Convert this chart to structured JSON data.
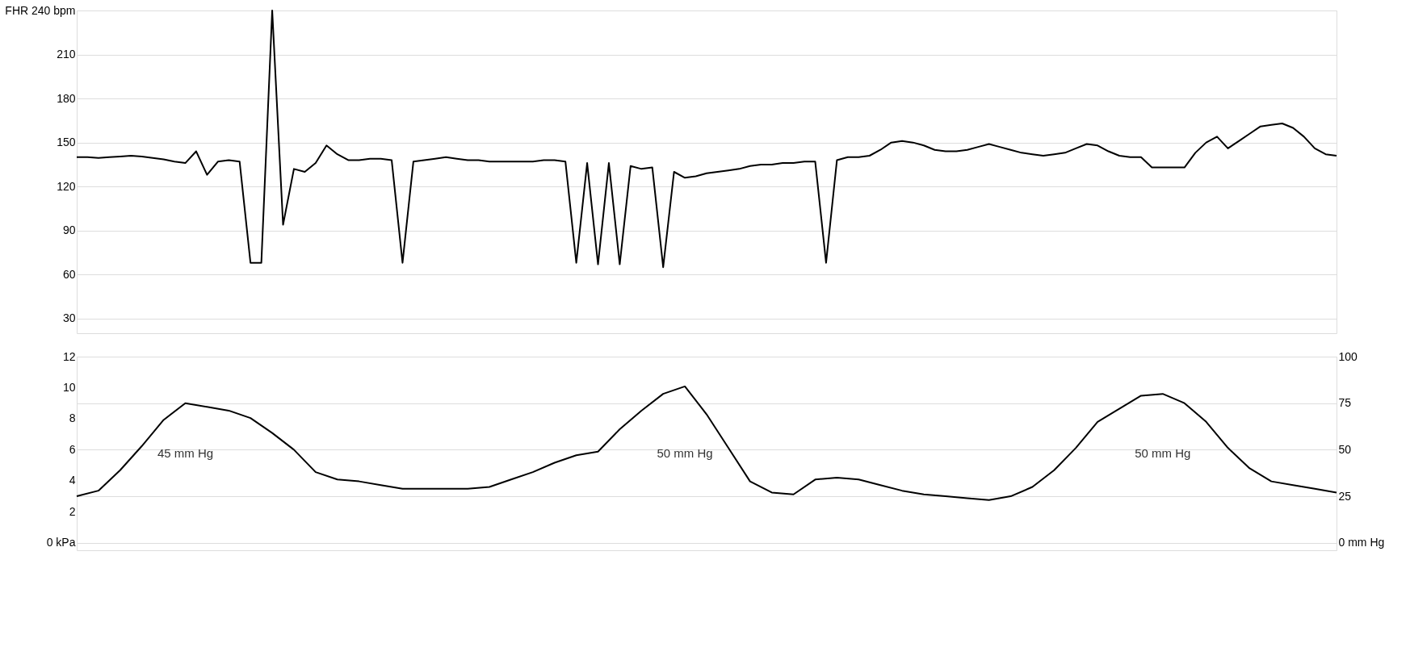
{
  "chart_data": [
    {
      "type": "line",
      "categories": [
        null,
        null,
        null,
        null,
        null,
        null,
        null,
        null,
        null,
        null,
        null,
        null,
        null,
        null,
        null,
        null,
        null,
        null,
        null,
        null,
        null,
        null,
        null,
        null,
        null,
        null,
        null,
        null,
        null,
        null,
        null,
        null,
        null,
        null,
        null,
        null,
        null,
        null,
        null,
        null,
        null,
        null,
        null,
        null,
        null,
        null,
        null,
        null,
        null,
        null,
        null,
        null,
        null,
        null,
        null,
        null,
        null,
        null,
        null,
        null,
        null,
        null,
        null,
        null,
        null,
        null,
        null,
        null,
        null,
        null,
        null,
        null,
        null,
        null,
        null,
        null,
        null,
        null,
        null,
        null,
        null,
        null,
        null,
        null,
        null,
        null,
        null,
        null,
        null,
        null,
        null,
        null,
        null,
        null,
        null,
        null,
        null,
        null,
        null,
        null,
        null,
        null,
        null,
        null,
        null,
        null,
        null,
        null,
        null,
        null,
        null,
        null,
        null,
        null,
        null,
        null,
        null
      ],
      "series": [
        {
          "color": "#000000",
          "values": [
            140,
            140,
            139.5,
            140,
            140.5,
            141,
            140.5,
            139.5,
            138.5,
            137,
            136,
            144,
            128,
            137,
            138,
            137,
            68,
            68,
            240,
            94,
            132,
            130,
            136,
            148,
            142,
            138,
            138,
            139,
            139,
            138,
            68,
            137,
            138,
            139,
            140,
            139,
            138,
            138,
            137,
            137,
            137,
            137,
            137,
            138,
            138,
            137,
            68,
            136,
            67,
            136,
            67,
            134,
            132,
            133,
            65,
            130,
            126,
            127,
            129,
            130,
            131,
            132,
            134,
            135,
            135,
            136,
            136,
            137,
            137,
            68,
            138,
            140,
            140,
            141,
            145,
            150,
            151,
            150,
            148,
            145,
            144,
            144,
            145,
            147,
            149,
            147,
            145,
            143,
            142,
            141,
            142,
            143,
            146,
            149,
            148,
            144,
            141,
            140,
            140,
            133,
            133,
            133,
            133,
            143,
            150,
            154,
            146,
            151,
            156,
            161,
            162,
            163,
            160,
            154,
            146,
            142,
            141
          ]
        }
      ],
      "ylim": [
        20,
        240
      ],
      "yticks": [
        30,
        60,
        90,
        120,
        150,
        180,
        210,
        {
          "value": 240,
          "label": "FHR 240 bpm"
        }
      ],
      "grid": "y",
      "tick_labels": "y"
    },
    {
      "type": "line",
      "categories": [
        null,
        null,
        null,
        null,
        null,
        null,
        null,
        null,
        null,
        null,
        null,
        null,
        null,
        null,
        null,
        null,
        null,
        null,
        null,
        null,
        null,
        null,
        null,
        null,
        null,
        null,
        null,
        null,
        null,
        null,
        null,
        null,
        null,
        null,
        null,
        null,
        null,
        null,
        null,
        null,
        null,
        null,
        null,
        null,
        null,
        null,
        null,
        null,
        null,
        null,
        null,
        null,
        null,
        null,
        null,
        null,
        null,
        null,
        null
      ],
      "series": [
        {
          "color": "#000000",
          "values": [
            25,
            28,
            39,
            52,
            66,
            75,
            73,
            71,
            67,
            59,
            50,
            38,
            34,
            33,
            31,
            29,
            29,
            29,
            29,
            30,
            34,
            38,
            43,
            47,
            49,
            61,
            71,
            80,
            84,
            69,
            51,
            33,
            27,
            26,
            34,
            35,
            34,
            31,
            28,
            26,
            25,
            24,
            23,
            25,
            30,
            39,
            51,
            65,
            72,
            79,
            80,
            75,
            65,
            51,
            40,
            33,
            31,
            29,
            27
          ]
        }
      ],
      "ylim": [
        -4,
        100
      ],
      "yticks": [
        {
          "value": 0,
          "label": "0 mm Hg"
        },
        25,
        50,
        75,
        100
      ],
      "y2lim": [
        -0.48,
        12
      ],
      "y2ticks": [
        {
          "value": 0,
          "label": "0 kPa"
        },
        2,
        4,
        6,
        8,
        10,
        12
      ],
      "annotations": [
        "45 mm Hg",
        "50 mm Hg",
        "50 mm Hg"
      ],
      "grid": "y",
      "tick_labels": "y"
    }
  ]
}
